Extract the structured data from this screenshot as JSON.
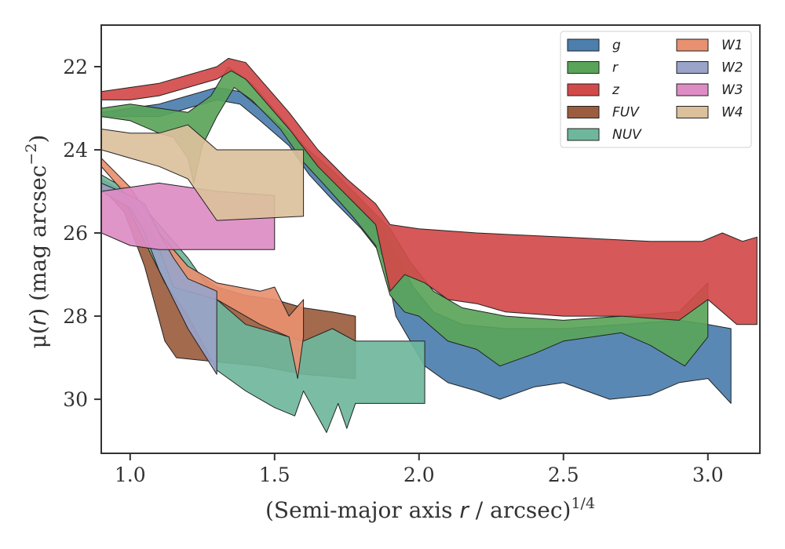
{
  "chart_data": {
    "type": "area",
    "xlabel_main": "(Semi-major axis ",
    "xlabel_var": "r",
    "xlabel_tail": " / arcsec)",
    "xlabel_sup": "1/4",
    "ylabel_main": "μ(",
    "ylabel_var": "r",
    "ylabel_tail": ") (mag arcsec",
    "ylabel_sup": "−2",
    "ylabel_close": ")",
    "xlim": [
      0.9,
      3.18
    ],
    "ylim": [
      31.3,
      21.0
    ],
    "y_inverted": true,
    "grid": false,
    "legend_position": "top-right",
    "x_ticks": [
      1.0,
      1.5,
      2.0,
      2.5,
      3.0
    ],
    "x_tick_labels": [
      "1.0",
      "1.5",
      "2.0",
      "2.5",
      "3.0"
    ],
    "y_ticks": [
      22,
      24,
      26,
      28,
      30
    ],
    "y_tick_labels": [
      "22",
      "24",
      "26",
      "28",
      "30"
    ],
    "series": [
      {
        "name": "g",
        "color": "#4c7eae",
        "upper": [
          [
            0.9,
            23.1
          ],
          [
            1.0,
            23.0
          ],
          [
            1.1,
            22.9
          ],
          [
            1.2,
            22.7
          ],
          [
            1.3,
            22.5
          ],
          [
            1.38,
            22.6
          ],
          [
            1.45,
            23.0
          ],
          [
            1.55,
            23.6
          ],
          [
            1.65,
            24.3
          ],
          [
            1.75,
            25.0
          ],
          [
            1.85,
            25.6
          ],
          [
            1.92,
            26.5
          ],
          [
            1.98,
            27.3
          ],
          [
            2.05,
            27.9
          ],
          [
            2.15,
            28.2
          ],
          [
            2.3,
            28.3
          ],
          [
            2.5,
            28.3
          ],
          [
            2.7,
            28.2
          ],
          [
            2.9,
            28.1
          ],
          [
            3.0,
            28.2
          ],
          [
            3.08,
            28.3
          ]
        ],
        "lower": [
          [
            0.9,
            23.2
          ],
          [
            1.0,
            23.2
          ],
          [
            1.1,
            23.2
          ],
          [
            1.2,
            23.0
          ],
          [
            1.3,
            22.8
          ],
          [
            1.38,
            22.9
          ],
          [
            1.45,
            23.3
          ],
          [
            1.55,
            23.9
          ],
          [
            1.62,
            24.6
          ],
          [
            1.7,
            25.2
          ],
          [
            1.8,
            25.9
          ],
          [
            1.88,
            26.6
          ],
          [
            1.92,
            28.0
          ],
          [
            1.97,
            28.6
          ],
          [
            2.02,
            29.2
          ],
          [
            2.1,
            29.6
          ],
          [
            2.2,
            29.8
          ],
          [
            2.28,
            30.0
          ],
          [
            2.4,
            29.7
          ],
          [
            2.5,
            29.6
          ],
          [
            2.66,
            30.0
          ],
          [
            2.8,
            29.9
          ],
          [
            2.9,
            29.6
          ],
          [
            3.0,
            29.5
          ],
          [
            3.08,
            30.1
          ]
        ]
      },
      {
        "name": "r",
        "color": "#5aa45a",
        "upper": [
          [
            0.9,
            23.0
          ],
          [
            1.0,
            22.9
          ],
          [
            1.1,
            23.0
          ],
          [
            1.2,
            23.1
          ],
          [
            1.28,
            22.7
          ],
          [
            1.34,
            22.0
          ],
          [
            1.42,
            22.4
          ],
          [
            1.52,
            23.2
          ],
          [
            1.6,
            23.9
          ],
          [
            1.7,
            24.5
          ],
          [
            1.8,
            25.2
          ],
          [
            1.9,
            25.9
          ],
          [
            1.97,
            26.7
          ],
          [
            2.05,
            27.4
          ],
          [
            2.15,
            27.8
          ],
          [
            2.3,
            28.0
          ],
          [
            2.5,
            28.1
          ],
          [
            2.7,
            28.0
          ],
          [
            2.9,
            27.9
          ],
          [
            3.0,
            27.2
          ]
        ],
        "lower": [
          [
            0.9,
            23.2
          ],
          [
            1.0,
            23.3
          ],
          [
            1.1,
            23.6
          ],
          [
            1.15,
            23.7
          ],
          [
            1.2,
            24.2
          ],
          [
            1.22,
            24.8
          ],
          [
            1.25,
            23.9
          ],
          [
            1.3,
            23.2
          ],
          [
            1.36,
            22.5
          ],
          [
            1.42,
            22.8
          ],
          [
            1.52,
            23.5
          ],
          [
            1.6,
            24.3
          ],
          [
            1.68,
            24.9
          ],
          [
            1.77,
            25.6
          ],
          [
            1.85,
            26.3
          ],
          [
            1.9,
            27.5
          ],
          [
            1.95,
            27.9
          ],
          [
            2.0,
            28.0
          ],
          [
            2.1,
            28.6
          ],
          [
            2.2,
            28.8
          ],
          [
            2.28,
            29.2
          ],
          [
            2.4,
            28.9
          ],
          [
            2.5,
            28.6
          ],
          [
            2.7,
            28.4
          ],
          [
            2.8,
            28.7
          ],
          [
            2.92,
            29.2
          ],
          [
            3.0,
            28.5
          ]
        ]
      },
      {
        "name": "z",
        "color": "#d24a4a",
        "upper": [
          [
            0.9,
            22.6
          ],
          [
            1.0,
            22.5
          ],
          [
            1.1,
            22.4
          ],
          [
            1.2,
            22.2
          ],
          [
            1.3,
            22.0
          ],
          [
            1.34,
            21.8
          ],
          [
            1.4,
            21.9
          ],
          [
            1.45,
            22.3
          ],
          [
            1.55,
            23.1
          ],
          [
            1.65,
            24.0
          ],
          [
            1.75,
            24.7
          ],
          [
            1.85,
            25.3
          ],
          [
            1.9,
            25.8
          ],
          [
            2.0,
            25.9
          ],
          [
            2.2,
            26.0
          ],
          [
            2.5,
            26.1
          ],
          [
            2.8,
            26.2
          ],
          [
            2.98,
            26.2
          ],
          [
            3.05,
            26.0
          ],
          [
            3.12,
            26.2
          ],
          [
            3.17,
            26.1
          ]
        ],
        "lower": [
          [
            0.9,
            22.8
          ],
          [
            1.0,
            22.8
          ],
          [
            1.1,
            22.7
          ],
          [
            1.2,
            22.5
          ],
          [
            1.3,
            22.3
          ],
          [
            1.35,
            22.1
          ],
          [
            1.4,
            22.3
          ],
          [
            1.45,
            22.7
          ],
          [
            1.55,
            23.5
          ],
          [
            1.65,
            24.4
          ],
          [
            1.75,
            25.1
          ],
          [
            1.85,
            25.8
          ],
          [
            1.9,
            27.4
          ],
          [
            1.95,
            27.0
          ],
          [
            2.02,
            27.2
          ],
          [
            2.1,
            27.6
          ],
          [
            2.2,
            27.7
          ],
          [
            2.3,
            27.9
          ],
          [
            2.5,
            28.0
          ],
          [
            2.7,
            28.0
          ],
          [
            2.9,
            28.1
          ],
          [
            3.0,
            27.6
          ],
          [
            3.1,
            28.2
          ],
          [
            3.17,
            28.2
          ]
        ]
      },
      {
        "name": "FUV",
        "color": "#9b5d3e",
        "upper": [
          [
            0.9,
            24.7
          ],
          [
            1.0,
            25.1
          ],
          [
            1.05,
            25.5
          ],
          [
            1.1,
            26.0
          ],
          [
            1.2,
            26.8
          ],
          [
            1.3,
            27.3
          ],
          [
            1.4,
            27.5
          ],
          [
            1.5,
            27.6
          ],
          [
            1.6,
            27.8
          ],
          [
            1.7,
            27.9
          ],
          [
            1.78,
            28.0
          ]
        ],
        "lower": [
          [
            0.9,
            24.9
          ],
          [
            0.98,
            25.5
          ],
          [
            1.05,
            26.8
          ],
          [
            1.12,
            28.6
          ],
          [
            1.16,
            29.0
          ],
          [
            1.3,
            29.1
          ],
          [
            1.45,
            29.2
          ],
          [
            1.6,
            29.4
          ],
          [
            1.78,
            29.5
          ]
        ]
      },
      {
        "name": "NUV",
        "color": "#6fb79c",
        "upper": [
          [
            0.9,
            24.6
          ],
          [
            1.0,
            25.0
          ],
          [
            1.1,
            25.8
          ],
          [
            1.2,
            26.6
          ],
          [
            1.3,
            27.6
          ],
          [
            1.4,
            28.2
          ],
          [
            1.5,
            28.4
          ],
          [
            1.6,
            28.6
          ],
          [
            1.7,
            28.3
          ],
          [
            1.78,
            28.6
          ],
          [
            2.02,
            28.6
          ]
        ],
        "lower": [
          [
            0.9,
            24.8
          ],
          [
            0.98,
            25.2
          ],
          [
            1.05,
            26.2
          ],
          [
            1.12,
            27.2
          ],
          [
            1.2,
            28.0
          ],
          [
            1.3,
            29.3
          ],
          [
            1.4,
            29.8
          ],
          [
            1.5,
            30.2
          ],
          [
            1.57,
            30.4
          ],
          [
            1.6,
            29.8
          ],
          [
            1.68,
            30.8
          ],
          [
            1.72,
            30.1
          ],
          [
            1.75,
            30.7
          ],
          [
            1.78,
            30.1
          ],
          [
            2.02,
            30.1
          ]
        ]
      },
      {
        "name": "W1",
        "color": "#e89070",
        "upper": [
          [
            0.9,
            24.2
          ],
          [
            1.0,
            24.9
          ],
          [
            1.1,
            26.0
          ],
          [
            1.2,
            26.8
          ],
          [
            1.3,
            27.2
          ],
          [
            1.45,
            27.4
          ],
          [
            1.5,
            27.3
          ],
          [
            1.55,
            28.0
          ],
          [
            1.6,
            27.6
          ]
        ],
        "lower": [
          [
            0.9,
            24.4
          ],
          [
            1.0,
            25.2
          ],
          [
            1.08,
            26.0
          ],
          [
            1.15,
            27.3
          ],
          [
            1.3,
            27.6
          ],
          [
            1.45,
            28.2
          ],
          [
            1.55,
            28.5
          ],
          [
            1.58,
            29.5
          ],
          [
            1.6,
            28.5
          ]
        ]
      },
      {
        "name": "W2",
        "color": "#9aa3c8",
        "upper": [
          [
            0.9,
            24.8
          ],
          [
            1.0,
            25.1
          ],
          [
            1.05,
            25.3
          ],
          [
            1.1,
            26.0
          ],
          [
            1.15,
            26.6
          ],
          [
            1.2,
            27.1
          ],
          [
            1.3,
            27.4
          ]
        ],
        "lower": [
          [
            0.9,
            25.0
          ],
          [
            1.0,
            25.4
          ],
          [
            1.05,
            26.0
          ],
          [
            1.1,
            26.9
          ],
          [
            1.15,
            27.6
          ],
          [
            1.2,
            28.3
          ],
          [
            1.3,
            29.4
          ]
        ]
      },
      {
        "name": "W3",
        "color": "#dd8cc4",
        "upper": [
          [
            0.9,
            25.0
          ],
          [
            1.0,
            24.9
          ],
          [
            1.1,
            24.8
          ],
          [
            1.3,
            25.0
          ],
          [
            1.5,
            25.1
          ]
        ],
        "lower": [
          [
            0.9,
            26.0
          ],
          [
            1.0,
            26.3
          ],
          [
            1.1,
            26.4
          ],
          [
            1.3,
            26.4
          ],
          [
            1.5,
            26.4
          ]
        ]
      },
      {
        "name": "W4",
        "color": "#dbc09b",
        "upper": [
          [
            0.9,
            23.5
          ],
          [
            1.0,
            23.6
          ],
          [
            1.1,
            23.6
          ],
          [
            1.2,
            23.4
          ],
          [
            1.3,
            24.0
          ],
          [
            1.6,
            24.0
          ]
        ],
        "lower": [
          [
            0.9,
            24.0
          ],
          [
            1.0,
            24.2
          ],
          [
            1.1,
            24.4
          ],
          [
            1.2,
            24.7
          ],
          [
            1.3,
            25.7
          ],
          [
            1.6,
            25.6
          ]
        ]
      }
    ]
  }
}
